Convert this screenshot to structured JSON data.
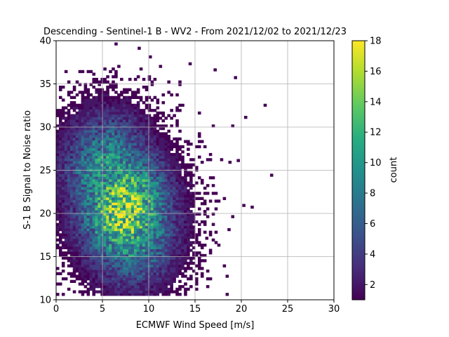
{
  "chart_data": {
    "type": "heatmap",
    "title": "Descending - Sentinel-1 B - WV2 - From 2021/12/02 to 2021/12/23",
    "xlabel": "ECMWF Wind Speed [m/s]",
    "ylabel": "S-1 B Signal to Noise ratio",
    "xlim": [
      0,
      30
    ],
    "ylim": [
      10,
      40
    ],
    "xticks": [
      "0",
      "5",
      "10",
      "15",
      "20",
      "25",
      "30"
    ],
    "yticks": [
      "10",
      "15",
      "20",
      "25",
      "30",
      "35",
      "40"
    ],
    "grid": true,
    "colorbar": {
      "label": "count",
      "colormap": "viridis",
      "range": [
        1,
        18
      ],
      "ticks": [
        "2",
        "4",
        "6",
        "8",
        "10",
        "12",
        "14",
        "16",
        "18"
      ]
    },
    "bins": {
      "x_step": 0.3,
      "y_step": 0.3
    },
    "density_centers": [
      {
        "x": 7.2,
        "y": 20.5,
        "peak": 18
      },
      {
        "x": 5.5,
        "y": 24.5,
        "peak": 12
      },
      {
        "x": 8.0,
        "y": 18.5,
        "peak": 13
      }
    ],
    "outliers": [
      {
        "x": 6.3,
        "y": 39.5
      },
      {
        "x": 8.8,
        "y": 39.0
      },
      {
        "x": 10.0,
        "y": 38.0
      },
      {
        "x": 14.3,
        "y": 37.2
      },
      {
        "x": 17.0,
        "y": 36.5
      },
      {
        "x": 19.2,
        "y": 35.6
      },
      {
        "x": 22.4,
        "y": 32.4
      },
      {
        "x": 20.3,
        "y": 31.0
      },
      {
        "x": 23.1,
        "y": 24.3
      },
      {
        "x": 19.5,
        "y": 26.0
      },
      {
        "x": 20.1,
        "y": 20.8
      },
      {
        "x": 21.0,
        "y": 20.6
      },
      {
        "x": 18.5,
        "y": 18.0
      },
      {
        "x": 16.1,
        "y": 17.0
      },
      {
        "x": 13.8,
        "y": 11.7
      },
      {
        "x": 15.5,
        "y": 15.0
      }
    ]
  }
}
